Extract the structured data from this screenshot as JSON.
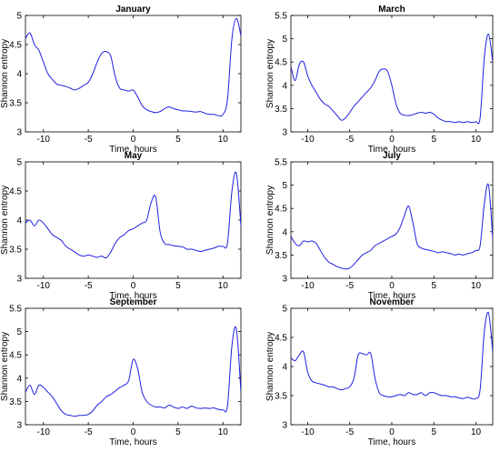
{
  "figure": {
    "panels": [
      {
        "title": "January",
        "xlabel": "Time, hours",
        "ylabel": "Shannon entropy"
      },
      {
        "title": "March",
        "xlabel": "Time, hours",
        "ylabel": "Shannon entropy"
      },
      {
        "title": "May",
        "xlabel": "Time, hours",
        "ylabel": "Shannon entropy"
      },
      {
        "title": "July",
        "xlabel": "Time, hours",
        "ylabel": "Shannon entropy"
      },
      {
        "title": "September",
        "xlabel": "Time, hours",
        "ylabel": "Shannon entropy"
      },
      {
        "title": "November",
        "xlabel": "Time, hours",
        "ylabel": "Shannon entropy"
      }
    ]
  },
  "colors": {
    "line": "#1f1fe0",
    "axis": "#000000"
  },
  "chart_data": [
    {
      "type": "line",
      "title": "January",
      "xlabel": "Time, hours",
      "ylabel": "Shannon entropy",
      "xlim": [
        -12,
        12
      ],
      "ylim": [
        3,
        5
      ],
      "xticks": [
        -10,
        -5,
        0,
        5,
        10
      ],
      "yticks": [
        3,
        3.5,
        4,
        4.5,
        5
      ],
      "grid": false,
      "series": [
        {
          "x": [
            -12,
            -11.5,
            -11,
            -10.5,
            -10,
            -9.5,
            -9,
            -8.5,
            -8,
            -7.5,
            -7,
            -6.5,
            -6,
            -5.5,
            -5,
            -4.5,
            -4,
            -3.5,
            -3,
            -2.5,
            -2,
            -1.5,
            -1,
            -0.5,
            0,
            0.5,
            1,
            1.5,
            2,
            2.5,
            3,
            3.5,
            4,
            4.5,
            5,
            5.5,
            6,
            6.5,
            7,
            7.5,
            8,
            8.5,
            9,
            9.5,
            10,
            10.5,
            11,
            11.5,
            12
          ],
          "y": [
            4.6,
            4.7,
            4.5,
            4.4,
            4.2,
            4.0,
            3.9,
            3.82,
            3.8,
            3.78,
            3.75,
            3.72,
            3.75,
            3.8,
            3.85,
            4.0,
            4.2,
            4.35,
            4.38,
            4.3,
            3.95,
            3.75,
            3.72,
            3.7,
            3.72,
            3.6,
            3.45,
            3.38,
            3.35,
            3.33,
            3.35,
            3.4,
            3.43,
            3.4,
            3.38,
            3.36,
            3.36,
            3.35,
            3.34,
            3.35,
            3.32,
            3.3,
            3.3,
            3.28,
            3.3,
            3.55,
            4.6,
            4.95,
            4.65
          ]
        }
      ]
    },
    {
      "type": "line",
      "title": "March",
      "xlabel": "Time, hours",
      "ylabel": "Shannon entropy",
      "xlim": [
        -12,
        12
      ],
      "ylim": [
        3,
        5.5
      ],
      "xticks": [
        -10,
        -5,
        0,
        5,
        10
      ],
      "yticks": [
        3,
        3.5,
        4,
        4.5,
        5,
        5.5
      ],
      "grid": false,
      "series": [
        {
          "x": [
            -12,
            -11.5,
            -11,
            -10.5,
            -10,
            -9.5,
            -9,
            -8.5,
            -8,
            -7.5,
            -7,
            -6.5,
            -6,
            -5.5,
            -5,
            -4.5,
            -4,
            -3.5,
            -3,
            -2.5,
            -2,
            -1.5,
            -1,
            -0.5,
            0,
            0.5,
            1,
            1.5,
            2,
            2.5,
            3,
            3.5,
            4,
            4.5,
            5,
            5.5,
            6,
            6.5,
            7,
            7.5,
            8,
            8.5,
            9,
            9.5,
            10,
            10.5,
            11,
            11.5,
            12
          ],
          "y": [
            4.4,
            4.1,
            4.45,
            4.5,
            4.2,
            4.0,
            3.85,
            3.7,
            3.6,
            3.55,
            3.45,
            3.35,
            3.25,
            3.3,
            3.42,
            3.55,
            3.65,
            3.75,
            3.85,
            3.95,
            4.1,
            4.3,
            4.35,
            4.3,
            4.0,
            3.6,
            3.4,
            3.36,
            3.35,
            3.37,
            3.4,
            3.42,
            3.4,
            3.42,
            3.38,
            3.3,
            3.25,
            3.22,
            3.22,
            3.2,
            3.22,
            3.2,
            3.22,
            3.2,
            3.22,
            3.3,
            4.6,
            5.1,
            4.5
          ]
        }
      ]
    },
    {
      "type": "line",
      "title": "May",
      "xlabel": "Time, hours",
      "ylabel": "Shannon entropy",
      "xlim": [
        -12,
        12
      ],
      "ylim": [
        3,
        5
      ],
      "xticks": [
        -10,
        -5,
        0,
        5,
        10
      ],
      "yticks": [
        3,
        3.5,
        4,
        4.5,
        5
      ],
      "grid": false,
      "series": [
        {
          "x": [
            -12,
            -11.5,
            -11,
            -10.5,
            -10,
            -9.5,
            -9,
            -8.5,
            -8,
            -7.5,
            -7,
            -6.5,
            -6,
            -5.5,
            -5,
            -4.5,
            -4,
            -3.5,
            -3,
            -2.5,
            -2,
            -1.5,
            -1,
            -0.5,
            0,
            0.5,
            1,
            1.5,
            2,
            2.5,
            3,
            3.5,
            4,
            4.5,
            5,
            5.5,
            6,
            6.5,
            7,
            7.5,
            8,
            8.5,
            9,
            9.5,
            10,
            10.5,
            11,
            11.5,
            12
          ],
          "y": [
            3.95,
            4.0,
            3.9,
            4.0,
            3.95,
            3.85,
            3.75,
            3.7,
            3.65,
            3.55,
            3.5,
            3.45,
            3.4,
            3.38,
            3.4,
            3.38,
            3.36,
            3.38,
            3.35,
            3.45,
            3.6,
            3.7,
            3.75,
            3.82,
            3.85,
            3.9,
            3.95,
            4.0,
            4.3,
            4.4,
            3.8,
            3.6,
            3.58,
            3.56,
            3.55,
            3.54,
            3.5,
            3.5,
            3.48,
            3.46,
            3.48,
            3.5,
            3.52,
            3.55,
            3.55,
            3.6,
            4.5,
            4.8,
            3.9
          ]
        }
      ]
    },
    {
      "type": "line",
      "title": "July",
      "xlabel": "Time, hours",
      "ylabel": "Shannon entropy",
      "xlim": [
        -12,
        12
      ],
      "ylim": [
        3,
        5.5
      ],
      "xticks": [
        -10,
        -5,
        0,
        5,
        10
      ],
      "yticks": [
        3,
        3.5,
        4,
        4.5,
        5,
        5.5
      ],
      "grid": false,
      "series": [
        {
          "x": [
            -12,
            -11.5,
            -11,
            -10.5,
            -10,
            -9.5,
            -9,
            -8.5,
            -8,
            -7.5,
            -7,
            -6.5,
            -6,
            -5.5,
            -5,
            -4.5,
            -4,
            -3.5,
            -3,
            -2.5,
            -2,
            -1.5,
            -1,
            -0.5,
            0,
            0.5,
            1,
            1.5,
            2,
            2.5,
            3,
            3.5,
            4,
            4.5,
            5,
            5.5,
            6,
            6.5,
            7,
            7.5,
            8,
            8.5,
            9,
            9.5,
            10,
            10.5,
            11,
            11.5,
            12
          ],
          "y": [
            3.9,
            3.75,
            3.7,
            3.8,
            3.78,
            3.8,
            3.75,
            3.6,
            3.45,
            3.35,
            3.3,
            3.25,
            3.22,
            3.2,
            3.22,
            3.3,
            3.4,
            3.5,
            3.55,
            3.6,
            3.7,
            3.75,
            3.8,
            3.85,
            3.9,
            3.95,
            4.1,
            4.35,
            4.55,
            4.2,
            3.75,
            3.65,
            3.62,
            3.6,
            3.58,
            3.55,
            3.57,
            3.55,
            3.53,
            3.5,
            3.52,
            3.5,
            3.53,
            3.55,
            3.6,
            3.7,
            4.6,
            5.0,
            3.85
          ]
        }
      ]
    },
    {
      "type": "line",
      "title": "September",
      "xlabel": "Time, hours",
      "ylabel": "Shannon entropy",
      "xlim": [
        -12,
        12
      ],
      "ylim": [
        3,
        5.5
      ],
      "xticks": [
        -10,
        -5,
        0,
        5,
        10
      ],
      "yticks": [
        3,
        3.5,
        4,
        4.5,
        5,
        5.5
      ],
      "grid": false,
      "series": [
        {
          "x": [
            -12,
            -11.5,
            -11,
            -10.5,
            -10,
            -9.5,
            -9,
            -8.5,
            -8,
            -7.5,
            -7,
            -6.5,
            -6,
            -5.5,
            -5,
            -4.5,
            -4,
            -3.5,
            -3,
            -2.5,
            -2,
            -1.5,
            -1,
            -0.5,
            0,
            0.5,
            1,
            1.5,
            2,
            2.5,
            3,
            3.5,
            4,
            4.5,
            5,
            5.5,
            6,
            6.5,
            7,
            7.5,
            8,
            8.5,
            9,
            9.5,
            10,
            10.5,
            11,
            11.5,
            12
          ],
          "y": [
            3.7,
            3.85,
            3.65,
            3.85,
            3.8,
            3.7,
            3.6,
            3.45,
            3.3,
            3.22,
            3.2,
            3.18,
            3.2,
            3.2,
            3.22,
            3.3,
            3.42,
            3.5,
            3.6,
            3.65,
            3.72,
            3.8,
            3.85,
            3.95,
            4.4,
            4.2,
            3.7,
            3.5,
            3.42,
            3.38,
            3.38,
            3.36,
            3.42,
            3.38,
            3.35,
            3.38,
            3.35,
            3.4,
            3.36,
            3.35,
            3.36,
            3.35,
            3.36,
            3.33,
            3.32,
            3.4,
            4.7,
            5.05,
            3.7
          ]
        }
      ]
    },
    {
      "type": "line",
      "title": "November",
      "xlabel": "Time, hours",
      "ylabel": "Shannon entropy",
      "xlim": [
        -12,
        12
      ],
      "ylim": [
        3,
        5
      ],
      "xticks": [
        -10,
        -5,
        0,
        5,
        10
      ],
      "yticks": [
        3,
        3.5,
        4,
        4.5,
        5
      ],
      "grid": false,
      "series": [
        {
          "x": [
            -12,
            -11.5,
            -11,
            -10.5,
            -10,
            -9.5,
            -9,
            -8.5,
            -8,
            -7.5,
            -7,
            -6.5,
            -6,
            -5.5,
            -5,
            -4.5,
            -4,
            -3.5,
            -3,
            -2.5,
            -2,
            -1.5,
            -1,
            -0.5,
            0,
            0.5,
            1,
            1.5,
            2,
            2.5,
            3,
            3.5,
            4,
            4.5,
            5,
            5.5,
            6,
            6.5,
            7,
            7.5,
            8,
            8.5,
            9,
            9.5,
            10,
            10.5,
            11,
            11.5,
            12
          ],
          "y": [
            4.15,
            4.1,
            4.2,
            4.25,
            3.9,
            3.75,
            3.72,
            3.7,
            3.68,
            3.65,
            3.65,
            3.62,
            3.6,
            3.62,
            3.65,
            3.8,
            4.2,
            4.22,
            4.2,
            4.22,
            3.8,
            3.55,
            3.5,
            3.48,
            3.48,
            3.5,
            3.52,
            3.5,
            3.55,
            3.52,
            3.52,
            3.55,
            3.5,
            3.55,
            3.55,
            3.52,
            3.5,
            3.5,
            3.48,
            3.48,
            3.46,
            3.45,
            3.47,
            3.45,
            3.45,
            3.6,
            4.6,
            4.92,
            4.25
          ]
        }
      ]
    }
  ]
}
